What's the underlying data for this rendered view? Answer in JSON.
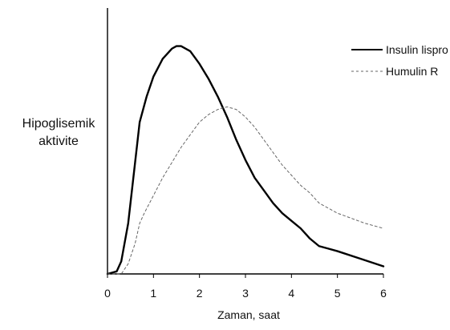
{
  "chart_data": {
    "type": "line",
    "title": "",
    "xlabel": "Zaman, saat",
    "ylabel_lines": [
      "Hipoglisemik",
      "aktivite"
    ],
    "xlim": [
      0,
      6
    ],
    "ylim": [
      0,
      1
    ],
    "x_ticks": [
      0,
      1,
      2,
      3,
      4,
      5,
      6
    ],
    "x_tick_labels": [
      "0",
      "1",
      "2",
      "3",
      "4",
      "5",
      "6"
    ],
    "grid": false,
    "legend_position": "top-right",
    "series": [
      {
        "name": "Insulin lispro",
        "color": "#000000",
        "dash": "solid",
        "points": [
          [
            0,
            0.0
          ],
          [
            0.2,
            0.01
          ],
          [
            0.3,
            0.05
          ],
          [
            0.45,
            0.2
          ],
          [
            0.6,
            0.44
          ],
          [
            0.7,
            0.6
          ],
          [
            0.85,
            0.7
          ],
          [
            1.0,
            0.78
          ],
          [
            1.2,
            0.85
          ],
          [
            1.4,
            0.89
          ],
          [
            1.5,
            0.9
          ],
          [
            1.6,
            0.9
          ],
          [
            1.8,
            0.88
          ],
          [
            2.0,
            0.83
          ],
          [
            2.2,
            0.77
          ],
          [
            2.4,
            0.7
          ],
          [
            2.6,
            0.62
          ],
          [
            2.8,
            0.53
          ],
          [
            3.0,
            0.45
          ],
          [
            3.2,
            0.38
          ],
          [
            3.4,
            0.33
          ],
          [
            3.6,
            0.28
          ],
          [
            3.8,
            0.24
          ],
          [
            4.0,
            0.21
          ],
          [
            4.2,
            0.18
          ],
          [
            4.4,
            0.14
          ],
          [
            4.6,
            0.11
          ],
          [
            4.8,
            0.1
          ],
          [
            5.0,
            0.09
          ],
          [
            5.5,
            0.06
          ],
          [
            6.0,
            0.03
          ]
        ]
      },
      {
        "name": "Humulin R",
        "color": "#666666",
        "dash": "dashed",
        "points": [
          [
            0,
            0.0
          ],
          [
            0.3,
            0.0
          ],
          [
            0.45,
            0.04
          ],
          [
            0.6,
            0.12
          ],
          [
            0.7,
            0.2
          ],
          [
            0.8,
            0.24
          ],
          [
            1.0,
            0.31
          ],
          [
            1.2,
            0.38
          ],
          [
            1.4,
            0.44
          ],
          [
            1.6,
            0.5
          ],
          [
            1.8,
            0.55
          ],
          [
            2.0,
            0.6
          ],
          [
            2.2,
            0.63
          ],
          [
            2.4,
            0.65
          ],
          [
            2.6,
            0.66
          ],
          [
            2.8,
            0.65
          ],
          [
            3.0,
            0.62
          ],
          [
            3.2,
            0.58
          ],
          [
            3.4,
            0.53
          ],
          [
            3.6,
            0.48
          ],
          [
            3.8,
            0.43
          ],
          [
            4.0,
            0.39
          ],
          [
            4.2,
            0.35
          ],
          [
            4.4,
            0.32
          ],
          [
            4.6,
            0.28
          ],
          [
            4.8,
            0.26
          ],
          [
            5.0,
            0.24
          ],
          [
            5.3,
            0.22
          ],
          [
            5.6,
            0.2
          ],
          [
            6.0,
            0.18
          ]
        ]
      }
    ]
  }
}
